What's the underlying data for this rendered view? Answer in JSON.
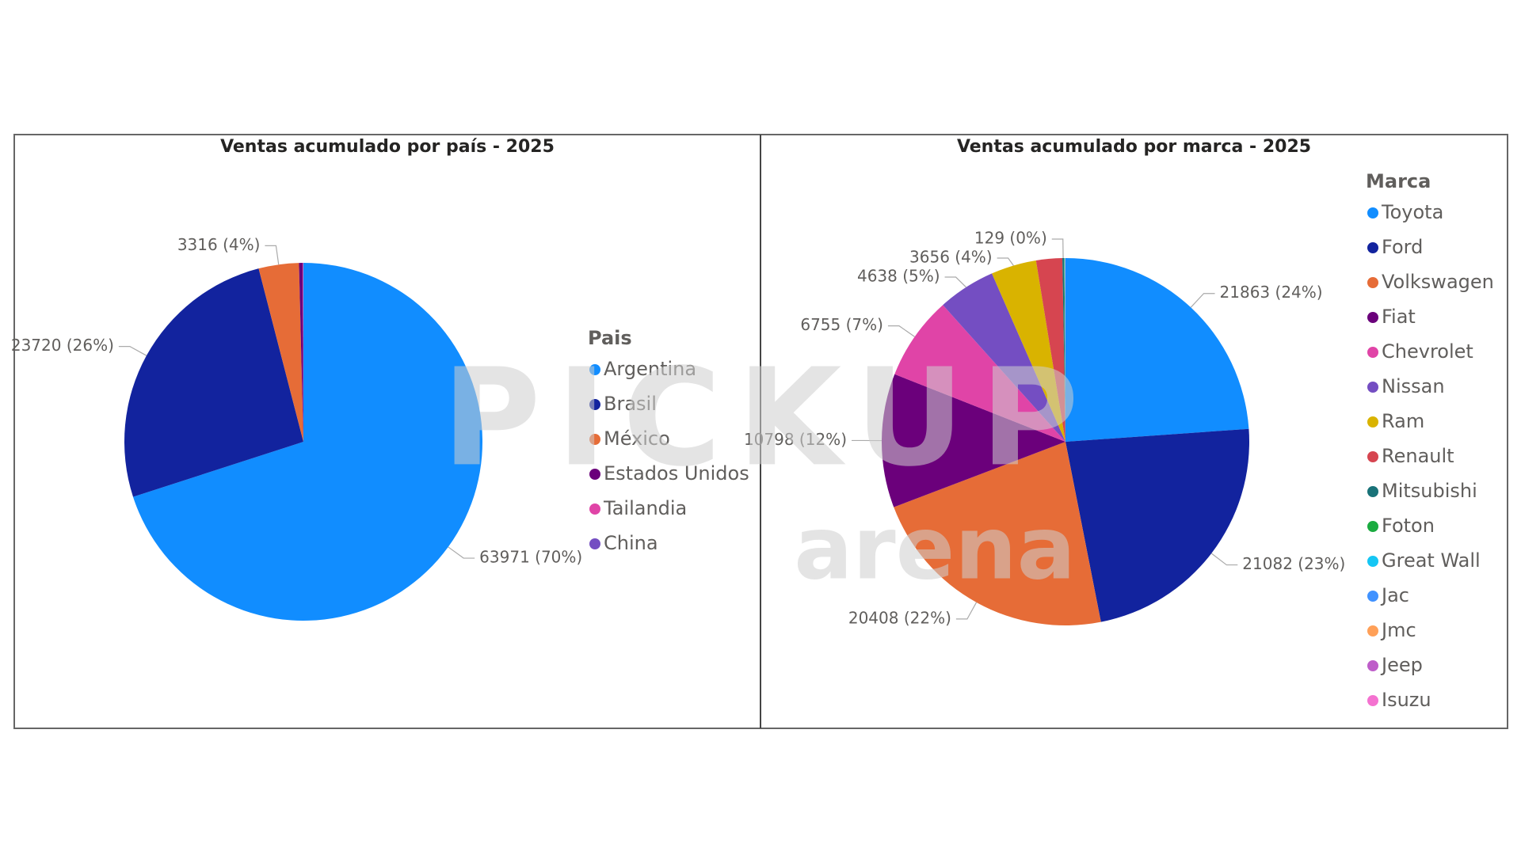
{
  "chart_data": [
    {
      "type": "pie",
      "title": "Ventas acumulado por país - 2025",
      "legend_title": "Pais",
      "legend": "right",
      "categories": [
        "Argentina",
        "Brasil",
        "México",
        "Estados Unidos",
        "Tailandia",
        "China"
      ],
      "values": [
        63971,
        23720,
        3316,
        300,
        50,
        10
      ],
      "value_labels": [
        "63971 (70%)",
        "23720 (26%)",
        "3316 (4%)",
        null,
        null,
        null
      ],
      "colors": [
        "#118dff",
        "#12239e",
        "#e66c37",
        "#6b007b",
        "#e044a7",
        "#744ec2"
      ]
    },
    {
      "type": "pie",
      "title": "Ventas acumulado por marca - 2025",
      "legend_title": "Marca",
      "legend": "right",
      "categories": [
        "Toyota",
        "Ford",
        "Volkswagen",
        "Fiat",
        "Chevrolet",
        "Nissan",
        "Ram",
        "Renault",
        "Mitsubishi",
        "Foton",
        "Great Wall",
        "Jac",
        "Jmc",
        "Jeep",
        "Isuzu"
      ],
      "values": [
        21863,
        21082,
        20408,
        10798,
        6755,
        4638,
        3656,
        2100,
        129,
        40,
        30,
        20,
        15,
        10,
        5
      ],
      "value_labels": [
        "21863 (24%)",
        "21082 (23%)",
        "20408 (22%)",
        "10798 (12%)",
        "6755 (7%)",
        "4638 (5%)",
        "3656 (4%)",
        null,
        "129 (0%)",
        null,
        null,
        null,
        null,
        null,
        null
      ],
      "colors": [
        "#118dff",
        "#12239e",
        "#e66c37",
        "#6b007b",
        "#e044a7",
        "#744ec2",
        "#d9b300",
        "#d64550",
        "#197278",
        "#1aab40",
        "#15c6f4",
        "#4092ff",
        "#ffa058",
        "#be5dc9",
        "#f472d0"
      ]
    }
  ],
  "watermark": {
    "main": "PICKUP",
    "sub": "arena"
  }
}
